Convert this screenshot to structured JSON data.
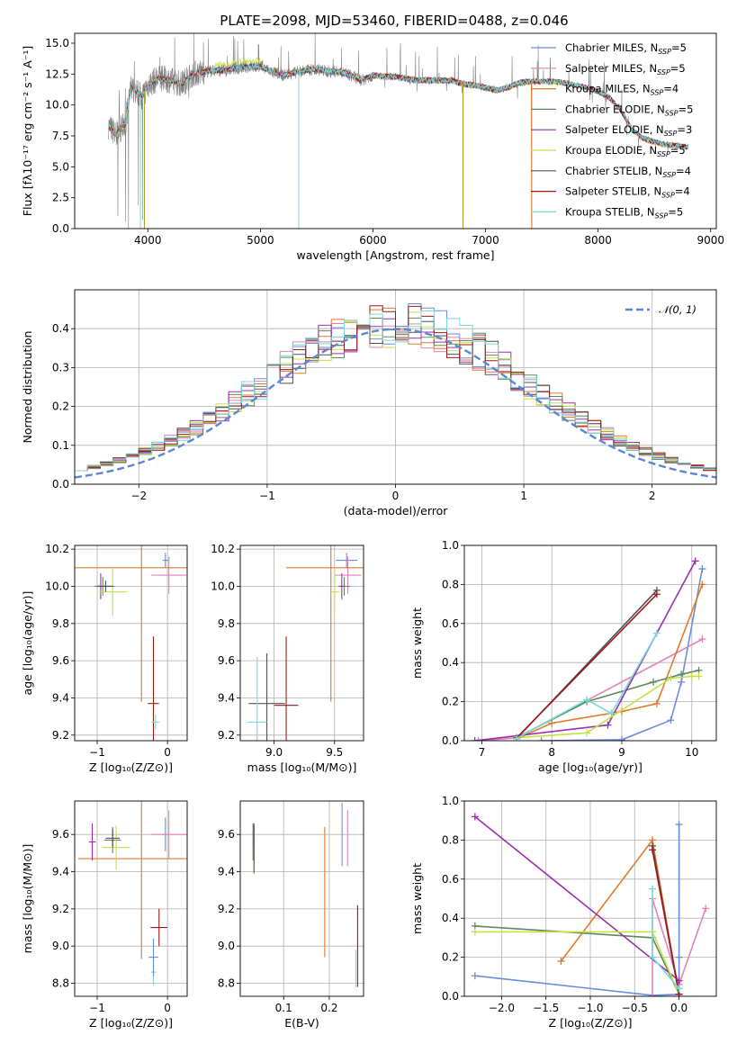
{
  "colors": [
    "#6a8ddb",
    "#e082b8",
    "#e07a2a",
    "#5c8a5c",
    "#9a2fb0",
    "#c6e04a",
    "#505050",
    "#a01818",
    "#7ad8d8"
  ],
  "figure_title": "PLATE=2098, MJD=53460, FIBERID=0488, z=0.046",
  "chart_data": [
    {
      "id": "spectrum",
      "type": "line",
      "xlabel": "wavelength [Angstrom, rest frame]",
      "ylabel": "Flux [fλ10⁻¹⁷ erg cm⁻² s⁻¹ A⁻¹]",
      "xlim": [
        3350,
        9050
      ],
      "ylim": [
        0,
        15.8
      ],
      "grid": false,
      "xticks": [
        4000,
        5000,
        6000,
        7000,
        8000,
        9000
      ],
      "xticklabels": [
        "4000",
        "5000",
        "6000",
        "7000",
        "8000",
        "9000"
      ],
      "yticks": [
        0,
        2.5,
        5,
        7.5,
        10,
        12.5,
        15
      ],
      "yticklabels": [
        "0.0",
        "2.5",
        "5.0",
        "7.5",
        "10.0",
        "12.5",
        "15.0"
      ],
      "legend_position": "top-right",
      "data_color": "#808080",
      "continuum": [
        [
          3650,
          8.3
        ],
        [
          3720,
          7.6
        ],
        [
          3800,
          8.5
        ],
        [
          3850,
          11.4
        ],
        [
          3900,
          11.1
        ],
        [
          3950,
          10.7
        ],
        [
          4000,
          11.6
        ],
        [
          4100,
          12.2
        ],
        [
          4200,
          12.0
        ],
        [
          4300,
          11.7
        ],
        [
          4400,
          12.5
        ],
        [
          4500,
          12.7
        ],
        [
          4600,
          12.8
        ],
        [
          4700,
          12.8
        ],
        [
          4800,
          13.0
        ],
        [
          4900,
          13.1
        ],
        [
          5000,
          13.1
        ],
        [
          5100,
          12.7
        ],
        [
          5200,
          12.4
        ],
        [
          5300,
          12.6
        ],
        [
          5400,
          12.8
        ],
        [
          5500,
          12.9
        ],
        [
          5600,
          12.7
        ],
        [
          5700,
          12.7
        ],
        [
          5800,
          12.4
        ],
        [
          5900,
          12.0
        ],
        [
          6000,
          12.4
        ],
        [
          6100,
          12.3
        ],
        [
          6200,
          12.3
        ],
        [
          6300,
          12.1
        ],
        [
          6400,
          12.0
        ],
        [
          6500,
          12.0
        ],
        [
          6600,
          12.0
        ],
        [
          6700,
          12.0
        ],
        [
          6800,
          11.7
        ],
        [
          6900,
          11.6
        ],
        [
          7000,
          11.4
        ],
        [
          7100,
          11.2
        ],
        [
          7200,
          11.4
        ],
        [
          7300,
          11.8
        ],
        [
          7400,
          11.9
        ],
        [
          7500,
          11.9
        ],
        [
          7600,
          11.9
        ],
        [
          7700,
          11.8
        ],
        [
          7800,
          11.6
        ],
        [
          7900,
          11.4
        ],
        [
          8000,
          11.1
        ],
        [
          8100,
          10.6
        ],
        [
          8200,
          9.6
        ],
        [
          8300,
          8.0
        ],
        [
          8400,
          7.3
        ],
        [
          8500,
          7.0
        ],
        [
          8600,
          6.8
        ],
        [
          8700,
          6.7
        ],
        [
          8800,
          6.6
        ]
      ],
      "dips": [
        [
          3934,
          0
        ],
        [
          3969,
          0
        ],
        [
          5340,
          0
        ],
        [
          6800,
          0
        ],
        [
          7410,
          0
        ]
      ],
      "legend": [
        {
          "label": "Chabrier MILES, N",
          "sub": "SSP",
          "suffix": "=5"
        },
        {
          "label": "Salpeter MILES, N",
          "sub": "SSP",
          "suffix": "=5"
        },
        {
          "label": "Kroupa MILES, N",
          "sub": "SSP",
          "suffix": "=4"
        },
        {
          "label": "Chabrier ELODIE, N",
          "sub": "SSP",
          "suffix": "=5"
        },
        {
          "label": "Salpeter ELODIE, N",
          "sub": "SSP",
          "suffix": "=3"
        },
        {
          "label": "Kroupa ELODIE, N",
          "sub": "SSP",
          "suffix": "=5"
        },
        {
          "label": "Chabrier STELIB, N",
          "sub": "SSP",
          "suffix": "=4"
        },
        {
          "label": "Salpeter STELIB, N",
          "sub": "SSP",
          "suffix": "=4"
        },
        {
          "label": "Kroupa STELIB, N",
          "sub": "SSP",
          "suffix": "=5"
        }
      ]
    },
    {
      "id": "residuals",
      "type": "step",
      "xlabel": "(data-model)/error",
      "ylabel": "Normed distribution",
      "xlim": [
        -2.5,
        2.5
      ],
      "ylim": [
        0,
        0.5
      ],
      "grid": true,
      "xticks": [
        -2,
        -1,
        0,
        1,
        2
      ],
      "xticklabels": [
        "−2",
        "−1",
        "0",
        "1",
        "2"
      ],
      "yticks": [
        0,
        0.1,
        0.2,
        0.3,
        0.4
      ],
      "yticklabels": [
        "0.0",
        "0.1",
        "0.2",
        "0.3",
        "0.4"
      ],
      "bin_width": 0.1,
      "gauss_label": "𝒩(0, 1)",
      "gauss_color": "#5b86d6",
      "legend_position": "top-right"
    },
    {
      "id": "age_vs_Z",
      "type": "errorbar",
      "xlabel": "Z [log₁₀(Z/Z⊙)]",
      "ylabel": "age  [log₁₀(age/yr)]",
      "xlim": [
        -1.32,
        0.28
      ],
      "ylim": [
        9.17,
        10.22
      ],
      "grid": true,
      "xticks": [
        -1,
        0
      ],
      "xticklabels": [
        "−1",
        "0"
      ],
      "yticks": [
        9.2,
        9.4,
        9.6,
        9.8,
        10.0,
        10.2
      ],
      "yticklabels": [
        "9.2",
        "9.4",
        "9.6",
        "9.8",
        "10.0",
        "10.2"
      ],
      "points": [
        {
          "x": -0.03,
          "y": 10.14,
          "xe": 0.04,
          "ye": 0.04
        },
        {
          "x": 0.02,
          "y": 10.06,
          "xe": 0.25,
          "ye": 0.1
        },
        {
          "x": -0.37,
          "y": 10.1,
          "xe": 1.1,
          "ye": 0.72
        },
        {
          "x": -0.92,
          "y": 10.0,
          "xe": 0.12,
          "ye": 0.05
        },
        {
          "x": -0.95,
          "y": 10.0,
          "xe": 0.05,
          "ye": 0.07
        },
        {
          "x": -0.78,
          "y": 9.97,
          "xe": 0.2,
          "ye": 0.13
        },
        {
          "x": -0.88,
          "y": 10.0,
          "xe": 0.12,
          "ye": 0.03
        },
        {
          "x": -0.2,
          "y": 9.37,
          "xe": 0.08,
          "ye": 0.36
        },
        {
          "x": -0.17,
          "y": 9.27,
          "xe": 0.06,
          "ye": 0.04
        }
      ]
    },
    {
      "id": "age_vs_mass",
      "type": "errorbar",
      "xlabel": "mass [log₁₀(M/M⊙)]",
      "ylabel": "",
      "xlim": [
        8.72,
        9.74
      ],
      "ylim": [
        9.17,
        10.22
      ],
      "grid": true,
      "xticks": [
        9.0,
        9.5
      ],
      "xticklabels": [
        "9.0",
        "9.5"
      ],
      "yticks": [
        9.2,
        9.4,
        9.6,
        9.8,
        10.0,
        10.2
      ],
      "yticklabels": [
        "9.2",
        "9.4",
        "9.6",
        "9.8",
        "10.0",
        "10.2"
      ],
      "points": [
        {
          "x": 9.6,
          "y": 10.14,
          "xe": 0.09,
          "ye": 0.04
        },
        {
          "x": 9.61,
          "y": 10.06,
          "xe": 0.11,
          "ye": 0.1
        },
        {
          "x": 9.47,
          "y": 10.1,
          "xe": 0.37,
          "ye": 0.72
        },
        {
          "x": 9.58,
          "y": 10.0,
          "xe": 0.05,
          "ye": 0.05
        },
        {
          "x": 9.56,
          "y": 10.0,
          "xe": 0.02,
          "ye": 0.07
        },
        {
          "x": 9.5,
          "y": 9.97,
          "xe": 0.04,
          "ye": 0.13
        },
        {
          "x": 8.94,
          "y": 9.37,
          "xe": 0.15,
          "ye": 0.27
        },
        {
          "x": 9.1,
          "y": 9.36,
          "xe": 0.1,
          "ye": 0.37
        },
        {
          "x": 8.86,
          "y": 9.27,
          "xe": 0.08,
          "ye": 0.35
        }
      ]
    },
    {
      "id": "mw_vs_age",
      "type": "line",
      "xlabel": "age  [log₁₀(age/yr)]",
      "ylabel": "mass weight",
      "xlim": [
        6.75,
        10.35
      ],
      "ylim": [
        0,
        1.0
      ],
      "grid": true,
      "xticks": [
        7,
        8,
        9,
        10
      ],
      "xticklabels": [
        "7",
        "8",
        "9",
        "10"
      ],
      "yticks": [
        0,
        0.2,
        0.4,
        0.6,
        0.8,
        1.0
      ],
      "yticklabels": [
        "0.0",
        "0.2",
        "0.4",
        "0.6",
        "0.8",
        "1.0"
      ],
      "series": [
        {
          "points": [
            [
              7.85,
              0.0
            ],
            [
              9.0,
              0.005
            ],
            [
              9.7,
              0.105
            ],
            [
              9.85,
              0.3
            ],
            [
              10.15,
              0.88
            ]
          ]
        },
        {
          "points": [
            [
              6.95,
              0.0
            ],
            [
              7.5,
              0.015
            ],
            [
              10.15,
              0.52
            ]
          ]
        },
        {
          "points": [
            [
              7.5,
              0.01
            ],
            [
              8.0,
              0.09
            ],
            [
              9.0,
              0.15
            ],
            [
              9.5,
              0.19
            ],
            [
              10.15,
              0.8
            ]
          ]
        },
        {
          "points": [
            [
              7.5,
              0.015
            ],
            [
              8.5,
              0.2
            ],
            [
              9.45,
              0.3
            ],
            [
              9.85,
              0.34
            ],
            [
              10.1,
              0.36
            ]
          ]
        },
        {
          "points": [
            [
              6.9,
              0.0
            ],
            [
              8.8,
              0.08
            ],
            [
              10.05,
              0.92
            ]
          ]
        },
        {
          "points": [
            [
              7.5,
              0.015
            ],
            [
              8.5,
              0.04
            ],
            [
              9.7,
              0.32
            ],
            [
              10.0,
              0.33
            ],
            [
              10.1,
              0.33
            ]
          ]
        },
        {
          "points": [
            [
              7.5,
              0.012
            ],
            [
              9.5,
              0.77
            ]
          ]
        },
        {
          "points": [
            [
              7.5,
              0.015
            ],
            [
              9.5,
              0.75
            ]
          ]
        },
        {
          "points": [
            [
              7.5,
              0.012
            ],
            [
              8.5,
              0.21
            ],
            [
              8.85,
              0.14
            ],
            [
              9.5,
              0.55
            ]
          ]
        }
      ]
    },
    {
      "id": "mass_vs_Z",
      "type": "errorbar",
      "xlabel": "Z [log₁₀(Z/Z⊙)]",
      "ylabel": "mass [log₁₀(M/M⊙)]",
      "xlim": [
        -1.32,
        0.28
      ],
      "ylim": [
        8.73,
        9.78
      ],
      "grid": true,
      "xticks": [
        -1,
        0
      ],
      "xticklabels": [
        "−1",
        "0"
      ],
      "yticks": [
        8.8,
        9.0,
        9.2,
        9.4,
        9.6
      ],
      "yticklabels": [
        "8.8",
        "9.0",
        "9.2",
        "9.4",
        "9.6"
      ],
      "points": [
        {
          "x": -0.03,
          "y": 9.6,
          "xe": 0.04,
          "ye": 0.09
        },
        {
          "x": 0.02,
          "y": 9.6,
          "xe": 0.25,
          "ye": 0.13
        },
        {
          "x": -0.37,
          "y": 9.47,
          "xe": 0.9,
          "ye": 0.54
        },
        {
          "x": -0.78,
          "y": 9.57,
          "xe": 0.12,
          "ye": 0.07
        },
        {
          "x": -1.07,
          "y": 9.56,
          "xe": 0.05,
          "ye": 0.1
        },
        {
          "x": -0.73,
          "y": 9.53,
          "xe": 0.2,
          "ye": 0.12
        },
        {
          "x": -0.78,
          "y": 9.58,
          "xe": 0.1,
          "ye": 0.05
        },
        {
          "x": -0.12,
          "y": 9.1,
          "xe": 0.12,
          "ye": 0.1
        },
        {
          "x": -0.2,
          "y": 8.86,
          "xe": 0.04,
          "ye": 0.07
        },
        {
          "x": -0.2,
          "y": 8.94,
          "xe": 0.07,
          "ye": 0.1
        }
      ]
    },
    {
      "id": "mass_vs_ebv",
      "type": "errorbar",
      "xlabel": "E(B-V)",
      "ylabel": "",
      "xlim": [
        0.005,
        0.275
      ],
      "ylim": [
        8.73,
        9.78
      ],
      "grid": true,
      "xticks": [
        0.1,
        0.2
      ],
      "xticklabels": [
        "0.1",
        "0.2"
      ],
      "yticks": [
        8.8,
        9.0,
        9.2,
        9.4,
        9.6
      ],
      "yticklabels": [
        "8.8",
        "9.0",
        "9.2",
        "9.4",
        "9.6"
      ],
      "points": [
        {
          "x": 0.228,
          "y": 9.6,
          "xe": 0,
          "ye": 0.17
        },
        {
          "x": 0.24,
          "y": 9.58,
          "xe": 0,
          "ye": 0.15
        },
        {
          "x": 0.19,
          "y": 9.29,
          "xe": 0,
          "ye": 0.35
        },
        {
          "x": 0.033,
          "y": 9.56,
          "xe": 0,
          "ye": 0.1
        },
        {
          "x": 0.035,
          "y": 9.56,
          "xe": 0,
          "ye": 0.1
        },
        {
          "x": 0.035,
          "y": 9.47,
          "xe": 0,
          "ye": 0.07
        },
        {
          "x": 0.035,
          "y": 9.52,
          "xe": 0,
          "ye": 0.13
        },
        {
          "x": 0.262,
          "y": 9.0,
          "xe": 0,
          "ye": 0.22
        },
        {
          "x": 0.258,
          "y": 8.88,
          "xe": 0,
          "ye": 0.1
        }
      ]
    },
    {
      "id": "mw_vs_Z",
      "type": "line",
      "xlabel": "Z [log₁₀(Z/Z⊙)]",
      "ylabel": "mass weight",
      "xlim": [
        -2.42,
        0.42
      ],
      "ylim": [
        0,
        1.0
      ],
      "grid": true,
      "xticks": [
        -2.0,
        -1.5,
        -1.0,
        -0.5,
        0.0
      ],
      "xticklabels": [
        "−2.0",
        "−1.5",
        "−1.0",
        "−0.5",
        "0.0"
      ],
      "yticks": [
        0,
        0.2,
        0.4,
        0.6,
        0.8,
        1.0
      ],
      "yticklabels": [
        "0.0",
        "0.2",
        "0.4",
        "0.6",
        "0.8",
        "1.0"
      ],
      "series": [
        {
          "points": [
            [
              -2.3,
              0.105
            ],
            [
              -0.3,
              0.005
            ],
            [
              0.0,
              0.01
            ],
            [
              0.0,
              0.88
            ],
            [
              0.0,
              0.2
            ]
          ]
        },
        {
          "points": [
            [
              -0.3,
              0.0
            ],
            [
              -0.3,
              0.5
            ],
            [
              0.0,
              0.06
            ],
            [
              0.3,
              0.45
            ]
          ]
        },
        {
          "points": [
            [
              -1.33,
              0.18
            ],
            [
              -0.3,
              0.8
            ],
            [
              0.0,
              0.01
            ]
          ]
        },
        {
          "points": [
            [
              -2.3,
              0.36
            ],
            [
              -0.3,
              0.3
            ],
            [
              0.0,
              0.01
            ]
          ]
        },
        {
          "points": [
            [
              -2.3,
              0.92
            ],
            [
              0.0,
              0.08
            ]
          ]
        },
        {
          "points": [
            [
              -2.3,
              0.33
            ],
            [
              -0.3,
              0.33
            ],
            [
              0.0,
              0.01
            ]
          ]
        },
        {
          "points": [
            [
              -0.3,
              0.77
            ],
            [
              0.0,
              0.01
            ]
          ]
        },
        {
          "points": [
            [
              -0.3,
              0.75
            ],
            [
              0.0,
              0.01
            ]
          ]
        },
        {
          "points": [
            [
              -0.3,
              0.55
            ],
            [
              -0.3,
              0.2
            ],
            [
              0.0,
              0.04
            ]
          ]
        }
      ]
    }
  ]
}
